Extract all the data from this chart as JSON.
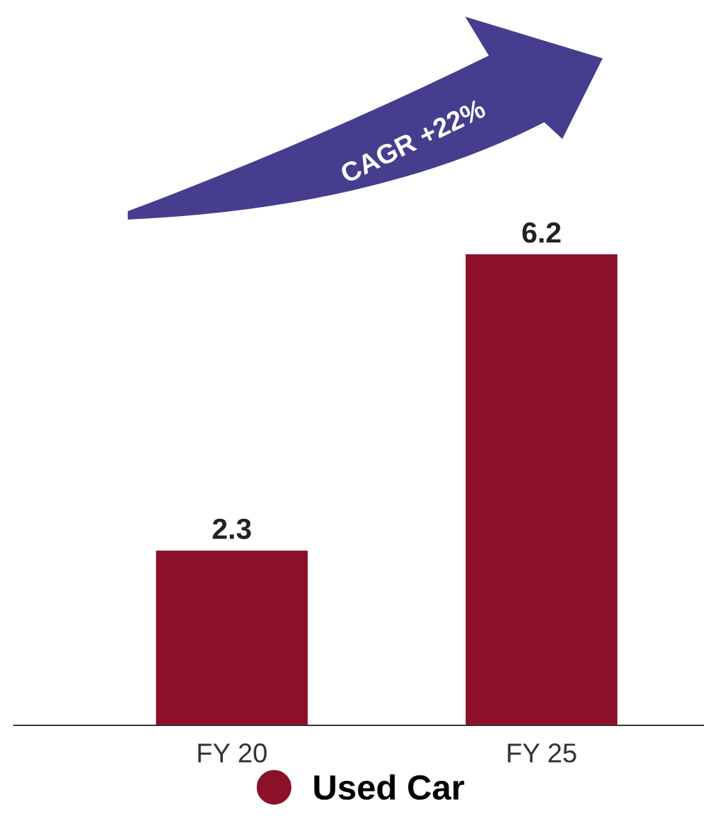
{
  "chart_data": {
    "type": "bar",
    "categories": [
      "FY 20",
      "FY 25"
    ],
    "series": [
      {
        "name": "Used Car",
        "color": "#8b1028",
        "values": [
          2.3,
          6.2
        ]
      }
    ],
    "tick_labels": "x",
    "data_labels": true,
    "legend": "bottom",
    "grid": false,
    "annotations": [
      "CAGR +22%"
    ]
  }
}
